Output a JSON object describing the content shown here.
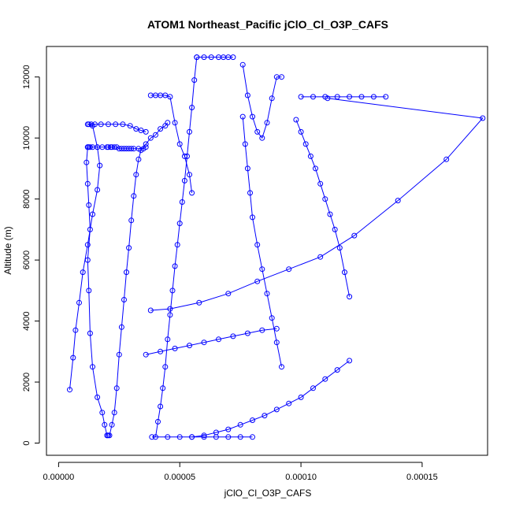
{
  "chart_data": {
    "type": "line",
    "title": "ATOM1 Northeast_Pacific jClO_Cl_O3P_CAFS",
    "xlabel": "jClO_Cl_O3P_CAFS",
    "ylabel": "Altitude (m)",
    "xlim": [
      -5e-06,
      0.000177
    ],
    "ylim": [
      -400,
      13000
    ],
    "xticks": [
      0,
      5e-05,
      0.0001,
      0.00015
    ],
    "xtick_labels": [
      "0.00000",
      "0.00005",
      "0.00010",
      "0.00015"
    ],
    "yticks": [
      0,
      2000,
      4000,
      6000,
      8000,
      10000,
      12000
    ],
    "ytick_labels": [
      "0",
      "2000",
      "4000",
      "6000",
      "8000",
      "10000",
      "12000"
    ],
    "marker": "open-circle",
    "grid": false,
    "legend": "none",
    "color": "#0000ff",
    "series": [
      {
        "x": [
          4.6e-06,
          6e-06,
          7e-06,
          8.5e-06,
          1e-05,
          1.2e-05,
          1.4e-05,
          1.6e-05,
          1.7e-05,
          1.6e-05,
          1.4e-05,
          1.2e-05,
          1.25e-05,
          1.35e-05,
          1.5e-05,
          1.75e-05,
          2.05e-05,
          2.35e-05,
          2.65e-05,
          2.95e-05,
          3.2e-05,
          3.4e-05,
          3.6e-05
        ],
        "y": [
          1750,
          2800,
          3700,
          4600,
          5600,
          6500,
          7500,
          8300,
          9100,
          9700,
          10400,
          10450,
          10450,
          10450,
          10450,
          10450,
          10450,
          10450,
          10450,
          10400,
          10300,
          10250,
          10200
        ]
      },
      {
        "x": [
          3.6e-05,
          3.5e-05,
          3.3e-05,
          3.1e-05,
          3e-05,
          2.9e-05,
          2.8e-05,
          2.7e-05,
          2.6e-05,
          2.5e-05,
          2.4e-05,
          2.3e-05,
          2.2e-05,
          2.15e-05,
          2.05e-05,
          2e-05,
          1.8e-05,
          1.6e-05,
          1.4e-05,
          1.3e-05,
          1.25e-05,
          1.2e-05
        ],
        "y": [
          9700,
          9650,
          9650,
          9650,
          9650,
          9650,
          9650,
          9650,
          9650,
          9650,
          9700,
          9700,
          9700,
          9700,
          9700,
          9700,
          9700,
          9700,
          9700,
          9700,
          9700,
          9700
        ]
      },
      {
        "x": [
          1.2e-05,
          1.15e-05,
          1.2e-05,
          1.25e-05,
          1.3e-05,
          1.2e-05,
          1.25e-05,
          1.3e-05,
          1.4e-05,
          1.6e-05,
          1.8e-05,
          1.9e-05,
          2e-05,
          2.05e-05,
          2e-05
        ],
        "y": [
          9700,
          9200,
          8500,
          7800,
          7000,
          6000,
          5000,
          3600,
          2500,
          1500,
          1000,
          600,
          250,
          250,
          250
        ]
      },
      {
        "x": [
          2.1e-05,
          2.2e-05,
          2.3e-05,
          2.4e-05,
          2.5e-05,
          2.6e-05,
          2.7e-05,
          2.8e-05,
          2.9e-05,
          3e-05,
          3.1e-05,
          3.2e-05,
          3.3e-05,
          3.4e-05,
          3.6e-05,
          3.8e-05,
          4e-05,
          4.2e-05,
          4.4e-05,
          4.5e-05
        ],
        "y": [
          250,
          600,
          1000,
          1800,
          2900,
          3800,
          4700,
          5600,
          6400,
          7300,
          8100,
          8800,
          9300,
          9600,
          9800,
          10000,
          10100,
          10300,
          10400,
          10500
        ]
      },
      {
        "x": [
          3.8e-05,
          4e-05,
          4.2e-05,
          4.4e-05,
          4.6e-05,
          4.8e-05,
          5e-05,
          5.2e-05,
          5.4e-05,
          5.5e-05
        ],
        "y": [
          11400,
          11400,
          11400,
          11400,
          11350,
          10500,
          9800,
          9400,
          8800,
          8200
        ]
      },
      {
        "x": [
          5.7e-05,
          6e-05,
          6.3e-05,
          6.6e-05,
          6.8e-05,
          7e-05,
          7.2e-05
        ],
        "y": [
          12650,
          12650,
          12650,
          12650,
          12650,
          12650,
          12650
        ]
      },
      {
        "x": [
          5.7e-05,
          5.6e-05,
          5.5e-05,
          5.4e-05,
          5.3e-05,
          5.2e-05,
          5.1e-05,
          5e-05,
          4.9e-05,
          4.8e-05,
          4.7e-05,
          4.6e-05,
          4.5e-05,
          4.4e-05,
          4.3e-05,
          4.2e-05,
          4.1e-05,
          4e-05
        ],
        "y": [
          12650,
          11900,
          11000,
          10200,
          9400,
          8600,
          7900,
          7200,
          6500,
          5800,
          5000,
          4200,
          3400,
          2500,
          1800,
          1200,
          700,
          200
        ]
      },
      {
        "x": [
          3.85e-05,
          4.5e-05,
          5e-05,
          5.5e-05,
          6e-05,
          6.5e-05,
          7e-05,
          7.5e-05,
          8e-05
        ],
        "y": [
          200,
          200,
          200,
          200,
          200,
          200,
          200,
          200,
          200
        ]
      },
      {
        "x": [
          7.6e-05,
          7.8e-05,
          8e-05,
          8.2e-05,
          8.4e-05,
          8.6e-05,
          8.8e-05,
          9e-05,
          9.2e-05
        ],
        "y": [
          12400,
          11400,
          10700,
          10200,
          10000,
          10500,
          11300,
          12000,
          12000
        ]
      },
      {
        "x": [
          7.6e-05,
          7.7e-05,
          7.8e-05,
          7.9e-05,
          8e-05,
          8.2e-05,
          8.4e-05,
          8.6e-05,
          8.8e-05,
          9e-05,
          9.2e-05
        ],
        "y": [
          10700,
          9800,
          9000,
          8200,
          7400,
          6500,
          5700,
          4900,
          4100,
          3300,
          2500
        ]
      },
      {
        "x": [
          0.0001,
          0.000105,
          0.00011,
          0.000115,
          0.00012,
          0.000125,
          0.00013,
          0.000135
        ],
        "y": [
          11350,
          11350,
          11350,
          11350,
          11350,
          11350,
          11350,
          11350
        ]
      },
      {
        "x": [
          0.000111,
          0.000175,
          0.00016,
          0.00014,
          0.000122,
          0.000108,
          9.5e-05,
          8.2e-05,
          7e-05,
          5.8e-05,
          4.6e-05,
          3.8e-05
        ],
        "y": [
          11300,
          10650,
          9300,
          7950,
          6800,
          6100,
          5700,
          5300,
          4900,
          4600,
          4400,
          4350
        ]
      },
      {
        "x": [
          9.8e-05,
          0.0001,
          0.000102,
          0.000104,
          0.000106,
          0.000108,
          0.00011,
          0.000112,
          0.000114,
          0.000116,
          0.000118,
          0.00012
        ],
        "y": [
          10600,
          10200,
          9800,
          9400,
          9000,
          8500,
          8000,
          7500,
          7000,
          6400,
          5600,
          4800
        ]
      },
      {
        "x": [
          0.00012,
          0.000115,
          0.00011,
          0.000105,
          0.0001,
          9.5e-05,
          9e-05,
          8.5e-05,
          8e-05,
          7.5e-05,
          7e-05,
          6.5e-05,
          6e-05,
          5.5e-05
        ],
        "y": [
          2700,
          2400,
          2100,
          1800,
          1500,
          1300,
          1100,
          900,
          750,
          600,
          450,
          350,
          250,
          200
        ]
      },
      {
        "x": [
          3.6e-05,
          4.2e-05,
          4.8e-05,
          5.4e-05,
          6e-05,
          6.6e-05,
          7.2e-05,
          7.8e-05,
          8.4e-05,
          9e-05
        ],
        "y": [
          2900,
          3000,
          3100,
          3200,
          3300,
          3400,
          3500,
          3600,
          3700,
          3750
        ]
      }
    ]
  }
}
